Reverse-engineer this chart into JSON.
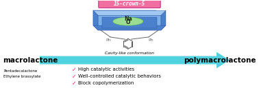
{
  "title_crown": "15-crown-5",
  "crown_bg": "#f06fa0",
  "crown_fg": "#ffffff",
  "crown_border": "#cc3388",
  "arrow_color": "#3ecfdc",
  "left_label": "macrolactone",
  "right_label": "polymacrolactone",
  "cavity_label": "Cavity-like conformation",
  "sub_labels": [
    "Pentadecalactone",
    "Ethylene brassylate"
  ],
  "bullet_color": "#e91e63",
  "bullets": [
    "High catalytic activities",
    "Well-controlled catalytic behaviors",
    "Block copolymerization"
  ],
  "bg_color": "#ffffff",
  "na_color": "#222222",
  "o_color": "#222222",
  "box_dark_blue": "#2a4fa0",
  "box_mid_blue": "#4a80cc",
  "box_light_blue": "#7ab0e8",
  "box_lighter": "#a0c8f0",
  "green_glow": "#aaee88",
  "green_edge": "#66cc44",
  "ph_color": "#666666",
  "ring_color": "#555555"
}
